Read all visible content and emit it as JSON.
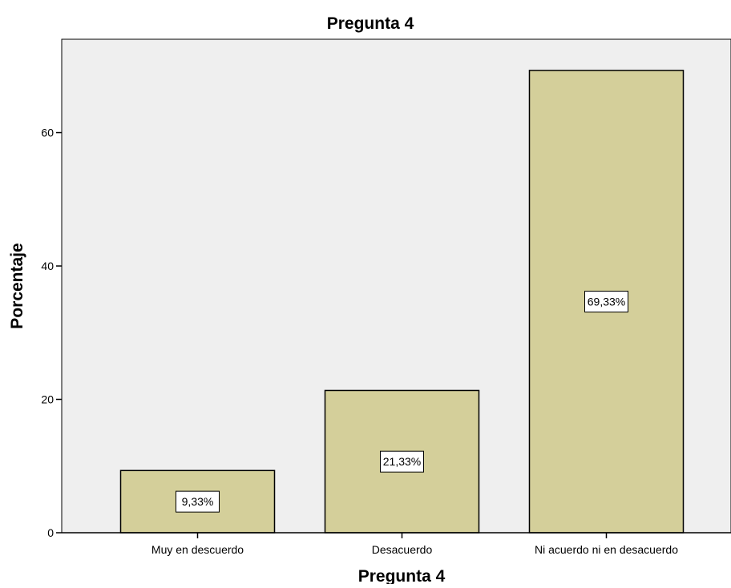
{
  "chart_data": {
    "type": "bar",
    "title": "Pregunta 4",
    "xlabel": "Pregunta 4",
    "ylabel": "Porcentaje",
    "categories": [
      "Muy en descuerdo",
      "Desacuerdo",
      "Ni acuerdo ni en desacuerdo"
    ],
    "values": [
      9.33,
      21.33,
      69.33
    ],
    "data_labels": [
      "9,33%",
      "21,33%",
      "69,33%"
    ],
    "ylim": [
      0,
      74
    ],
    "yticks": [
      0,
      20,
      40,
      60
    ],
    "ytick_labels": [
      "0",
      "20",
      "40",
      "60"
    ],
    "grid": false,
    "legend": "none",
    "colors": {
      "plot_background": "#efefef",
      "bar_fill": "#d4cf9a",
      "bar_stroke": "#000000",
      "label_box": "#ffffff"
    }
  }
}
